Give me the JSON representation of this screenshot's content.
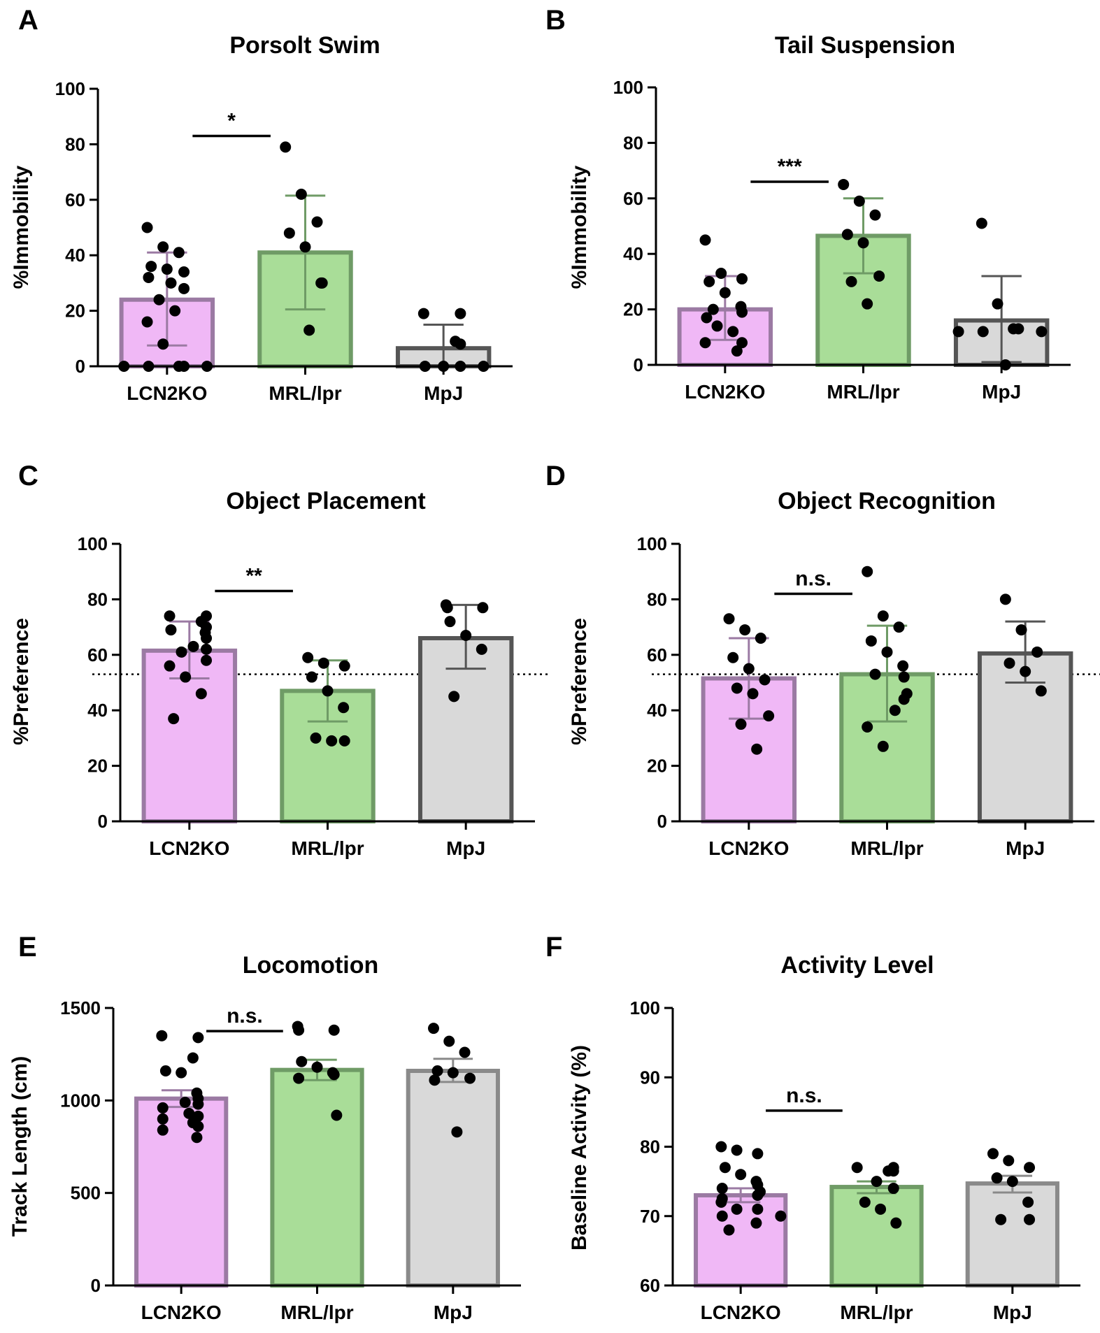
{
  "colors": {
    "lcn2ko_fill": "#f0b8f6",
    "lcn2ko_edge": "#9b7aa3",
    "mrl_fill": "#a9dd98",
    "mrl_edge": "#6f9b66",
    "mpj_fill": "#d9d9d9",
    "mpj_edge": "#555555",
    "mpj_edge_light": "#8a8a8a",
    "dot": "#000000",
    "axis": "#000000"
  },
  "chart_data": [
    {
      "panel": "A",
      "type": "bar",
      "title": "Porsolt Swim",
      "ylabel": "%Immobility",
      "ylim": [
        0,
        100
      ],
      "yticks": [
        0,
        20,
        40,
        60,
        80,
        100
      ],
      "categories": [
        "LCN2KO",
        "MRL/lpr",
        "MpJ"
      ],
      "values": [
        24,
        41,
        6.5
      ],
      "errors": [
        [
          7.5,
          41
        ],
        [
          20.5,
          61.5
        ],
        [
          0,
          15
        ]
      ],
      "points": [
        [
          50,
          43,
          41,
          36,
          35,
          34,
          32,
          30,
          28,
          24,
          20,
          16,
          8,
          0,
          0,
          0,
          0,
          0
        ],
        [
          79,
          62,
          52,
          48,
          43,
          30,
          30,
          13
        ],
        [
          19,
          19,
          9,
          8,
          0,
          0,
          0,
          0
        ]
      ],
      "significance": {
        "label": "*",
        "from": 0,
        "to": 1,
        "y": 83
      }
    },
    {
      "panel": "B",
      "type": "bar",
      "title": "Tail Suspension",
      "ylabel": "%Immobility",
      "ylim": [
        0,
        100
      ],
      "yticks": [
        0,
        20,
        40,
        60,
        80,
        100
      ],
      "categories": [
        "LCN2KO",
        "MRL/lpr",
        "MpJ"
      ],
      "values": [
        20,
        46.5,
        16
      ],
      "errors": [
        [
          9,
          32
        ],
        [
          33,
          60
        ],
        [
          1,
          32
        ]
      ],
      "points": [
        [
          45,
          33,
          31,
          30,
          26,
          21,
          20,
          19,
          17,
          14,
          12,
          8,
          8,
          5
        ],
        [
          65,
          59,
          54,
          47,
          44,
          32,
          30,
          22
        ],
        [
          51,
          22,
          13,
          13,
          12,
          12,
          12,
          0
        ]
      ],
      "significance": {
        "label": "***",
        "from": 0,
        "to": 1,
        "y": 66
      }
    },
    {
      "panel": "C",
      "type": "bar",
      "title": "Object Placement",
      "ylabel": "%Preference",
      "ylim": [
        0,
        100
      ],
      "yticks": [
        0,
        20,
        40,
        60,
        80,
        100
      ],
      "categories": [
        "LCN2KO",
        "MRL/lpr",
        "MpJ"
      ],
      "values": [
        61.5,
        47,
        66
      ],
      "errors": [
        [
          51.5,
          72
        ],
        [
          36,
          58
        ],
        [
          55,
          78
        ]
      ],
      "points": [
        [
          74,
          74,
          72,
          70,
          69,
          68,
          66,
          63,
          62,
          61,
          58,
          56,
          52,
          46,
          37
        ],
        [
          59,
          57,
          56,
          52,
          47,
          41,
          30,
          29,
          29
        ],
        [
          78,
          77,
          77,
          72,
          67,
          62,
          45
        ]
      ],
      "reference_line": 53,
      "significance": {
        "label": "**",
        "from": 0,
        "to": 1,
        "y": 83
      }
    },
    {
      "panel": "D",
      "type": "bar",
      "title": "Object Recognition",
      "ylabel": "%Preference",
      "ylim": [
        0,
        100
      ],
      "yticks": [
        0,
        20,
        40,
        60,
        80,
        100
      ],
      "categories": [
        "LCN2KO",
        "MRL/lpr",
        "MpJ"
      ],
      "values": [
        51.5,
        53,
        60.5
      ],
      "errors": [
        [
          37,
          66
        ],
        [
          36,
          70.5
        ],
        [
          50,
          72
        ]
      ],
      "points": [
        [
          73,
          69,
          66,
          59,
          55,
          51,
          48,
          46,
          38,
          35,
          26
        ],
        [
          90,
          74,
          70,
          65,
          61,
          56,
          53,
          52,
          46,
          44,
          40,
          34,
          27
        ],
        [
          80,
          69,
          61,
          57,
          54,
          47
        ]
      ],
      "reference_line": 53,
      "significance": {
        "label": "n.s.",
        "from": 0,
        "to": 1,
        "y": 82
      }
    },
    {
      "panel": "E",
      "type": "bar",
      "title": "Locomotion",
      "ylabel": "Track Length (cm)",
      "ylim": [
        0,
        1500
      ],
      "yticks": [
        0,
        500,
        1000,
        1500
      ],
      "categories": [
        "LCN2KO",
        "MRL/lpr",
        "MpJ"
      ],
      "values": [
        1010,
        1165,
        1160
      ],
      "errors": [
        [
          965,
          1055
        ],
        [
          1110,
          1220
        ],
        [
          1100,
          1225
        ]
      ],
      "points": [
        [
          1350,
          1340,
          1230,
          1160,
          1150,
          1040,
          1010,
          990,
          980,
          960,
          930,
          915,
          900,
          880,
          860,
          840,
          800
        ],
        [
          1400,
          1380,
          1380,
          1210,
          1180,
          1150,
          1140,
          1120,
          920
        ],
        [
          1390,
          1320,
          1260,
          1160,
          1150,
          1120,
          1110,
          830
        ]
      ],
      "significance": {
        "label": "n.s.",
        "from": 0,
        "to": 1,
        "y": 1375
      }
    },
    {
      "panel": "F",
      "type": "bar",
      "title": "Activity Level",
      "ylabel": "Baseline Activity (%)",
      "ylim": [
        60,
        100
      ],
      "yticks": [
        60,
        70,
        80,
        90,
        100
      ],
      "categories": [
        "LCN2KO",
        "MRL/lpr",
        "MpJ"
      ],
      "values": [
        73,
        74.2,
        74.7
      ],
      "errors": [
        [
          72,
          74
        ],
        [
          73.3,
          75
        ],
        [
          73.4,
          75.8
        ]
      ],
      "points": [
        [
          80,
          79.5,
          79,
          77,
          76,
          75,
          74.5,
          74,
          73.5,
          73,
          72.5,
          72,
          71,
          71,
          70,
          70,
          69,
          68
        ],
        [
          77,
          77,
          76.5,
          76.5,
          75,
          74,
          72,
          71,
          69
        ],
        [
          79,
          78,
          77,
          75.5,
          75,
          72,
          69.5,
          69.5
        ]
      ],
      "significance": {
        "label": "n.s.",
        "from": 0,
        "to": 1,
        "y": 85.2
      }
    }
  ]
}
